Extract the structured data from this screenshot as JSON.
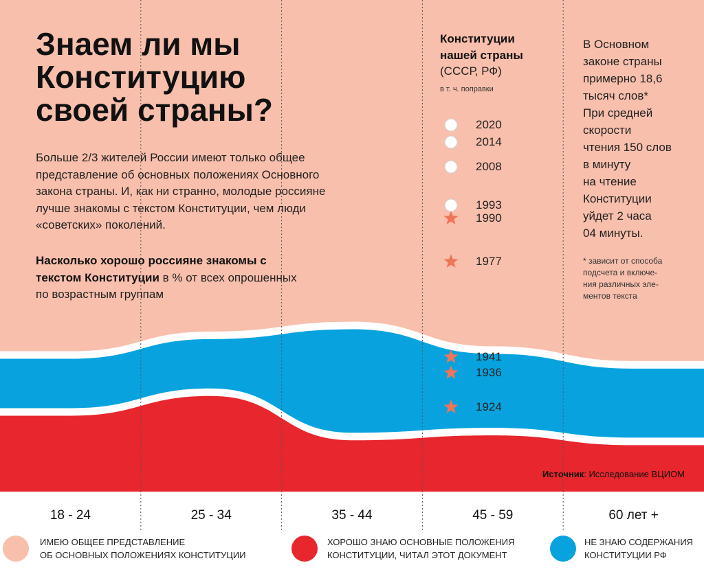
{
  "header": {
    "title": "Знаем ли мы\nКонституцию\nсвоей страны?",
    "lead": "Больше 2/3 жителей России имеют только общее представление об основных положениях Основного закона страны. И, как ни странно, молодые россияне лучше знакомы с текстом Конституции, чем люди «советских» поколений.",
    "question_bold": "Насколько хорошо россияне знакомы с текстом Конституции",
    "question_rest": " в % от всех опрошенных по возрастным группам"
  },
  "constitutions": {
    "title": "Конституции\nнашей страны",
    "subtitle": "(СССР, РФ)",
    "note": "в т. ч. поправки",
    "items": [
      {
        "year": "2020",
        "kind": "circle"
      },
      {
        "year": "2014",
        "kind": "circle"
      },
      {
        "year": "2008",
        "kind": "circle"
      },
      {
        "year": "1993",
        "kind": "circle"
      },
      {
        "year": "1990",
        "kind": "star"
      },
      {
        "year": "1977",
        "kind": "star"
      },
      {
        "year": "1941",
        "kind": "star"
      },
      {
        "year": "1936",
        "kind": "star"
      },
      {
        "year": "1924",
        "kind": "star"
      }
    ]
  },
  "side": {
    "text": "В Основном\nзаконе страны\nпримерно 18,6\nтысяч слов*\nПри средней\nскорости\nчтения 150 слов\nв минуту\nна чтение\nКонституции\nуйдет 2 часа\n04 минуты.",
    "footnote": "* зависит от способа\nподсчета и включе-\nния различных эле-\nментов текста"
  },
  "source": {
    "label": "Источник",
    "text": ": Исследование ВЦИОМ"
  },
  "colors": {
    "general": "#f8bfac",
    "good": "#e8262d",
    "unknown": "#08a3de",
    "star": "#ef7558"
  },
  "chart_data": {
    "type": "area",
    "title": "Насколько хорошо россияне знакомы с текстом Конституции",
    "ylabel": "% от всех опрошенных",
    "categories": [
      "18 - 24",
      "25 - 34",
      "35 - 44",
      "45 - 59",
      "60 лет +"
    ],
    "series": [
      {
        "name": "ИМЕЮ ОБЩЕЕ ПРЕДСТАВЛЕНИЕ ОБ ОСНОВНЫХ ПОЛОЖЕНИЯХ КОНСТИТУЦИИ",
        "values": [
          72,
          68,
          66,
          71,
          74
        ],
        "color": "#f8bfac"
      },
      {
        "name": "НЕ ЗНАЮ СОДЕРЖАНИЯ КОНСТИТУЦИИ РФ",
        "values": [
          12,
          12,
          23,
          17,
          16
        ],
        "color": "#08a3de"
      },
      {
        "name": "ХОРОШО ЗНАЮ ОСНОВНЫЕ ПОЛОЖЕНИЯ КОНСТИТУЦИИ, ЧИТАЛ ЭТОТ ДОКУМЕНТ",
        "values": [
          16,
          20,
          11,
          12,
          10
        ],
        "color": "#e8262d"
      }
    ],
    "ylim": [
      0,
      100
    ]
  },
  "legend": [
    {
      "label": "ИМЕЮ ОБЩЕЕ ПРЕДСТАВЛЕНИЕ\nОБ ОСНОВНЫХ ПОЛОЖЕНИЯХ КОНСТИТУЦИИ",
      "color": "#f8bfac"
    },
    {
      "label": "ХОРОШО ЗНАЮ ОСНОВНЫЕ ПОЛОЖЕНИЯ\nКОНСТИТУЦИИ, ЧИТАЛ ЭТОТ ДОКУМЕНТ",
      "color": "#e8262d"
    },
    {
      "label": "НЕ ЗНАЮ СОДЕРЖАНИЯ\nКОНСТИТУЦИИ РФ",
      "color": "#08a3de"
    }
  ]
}
